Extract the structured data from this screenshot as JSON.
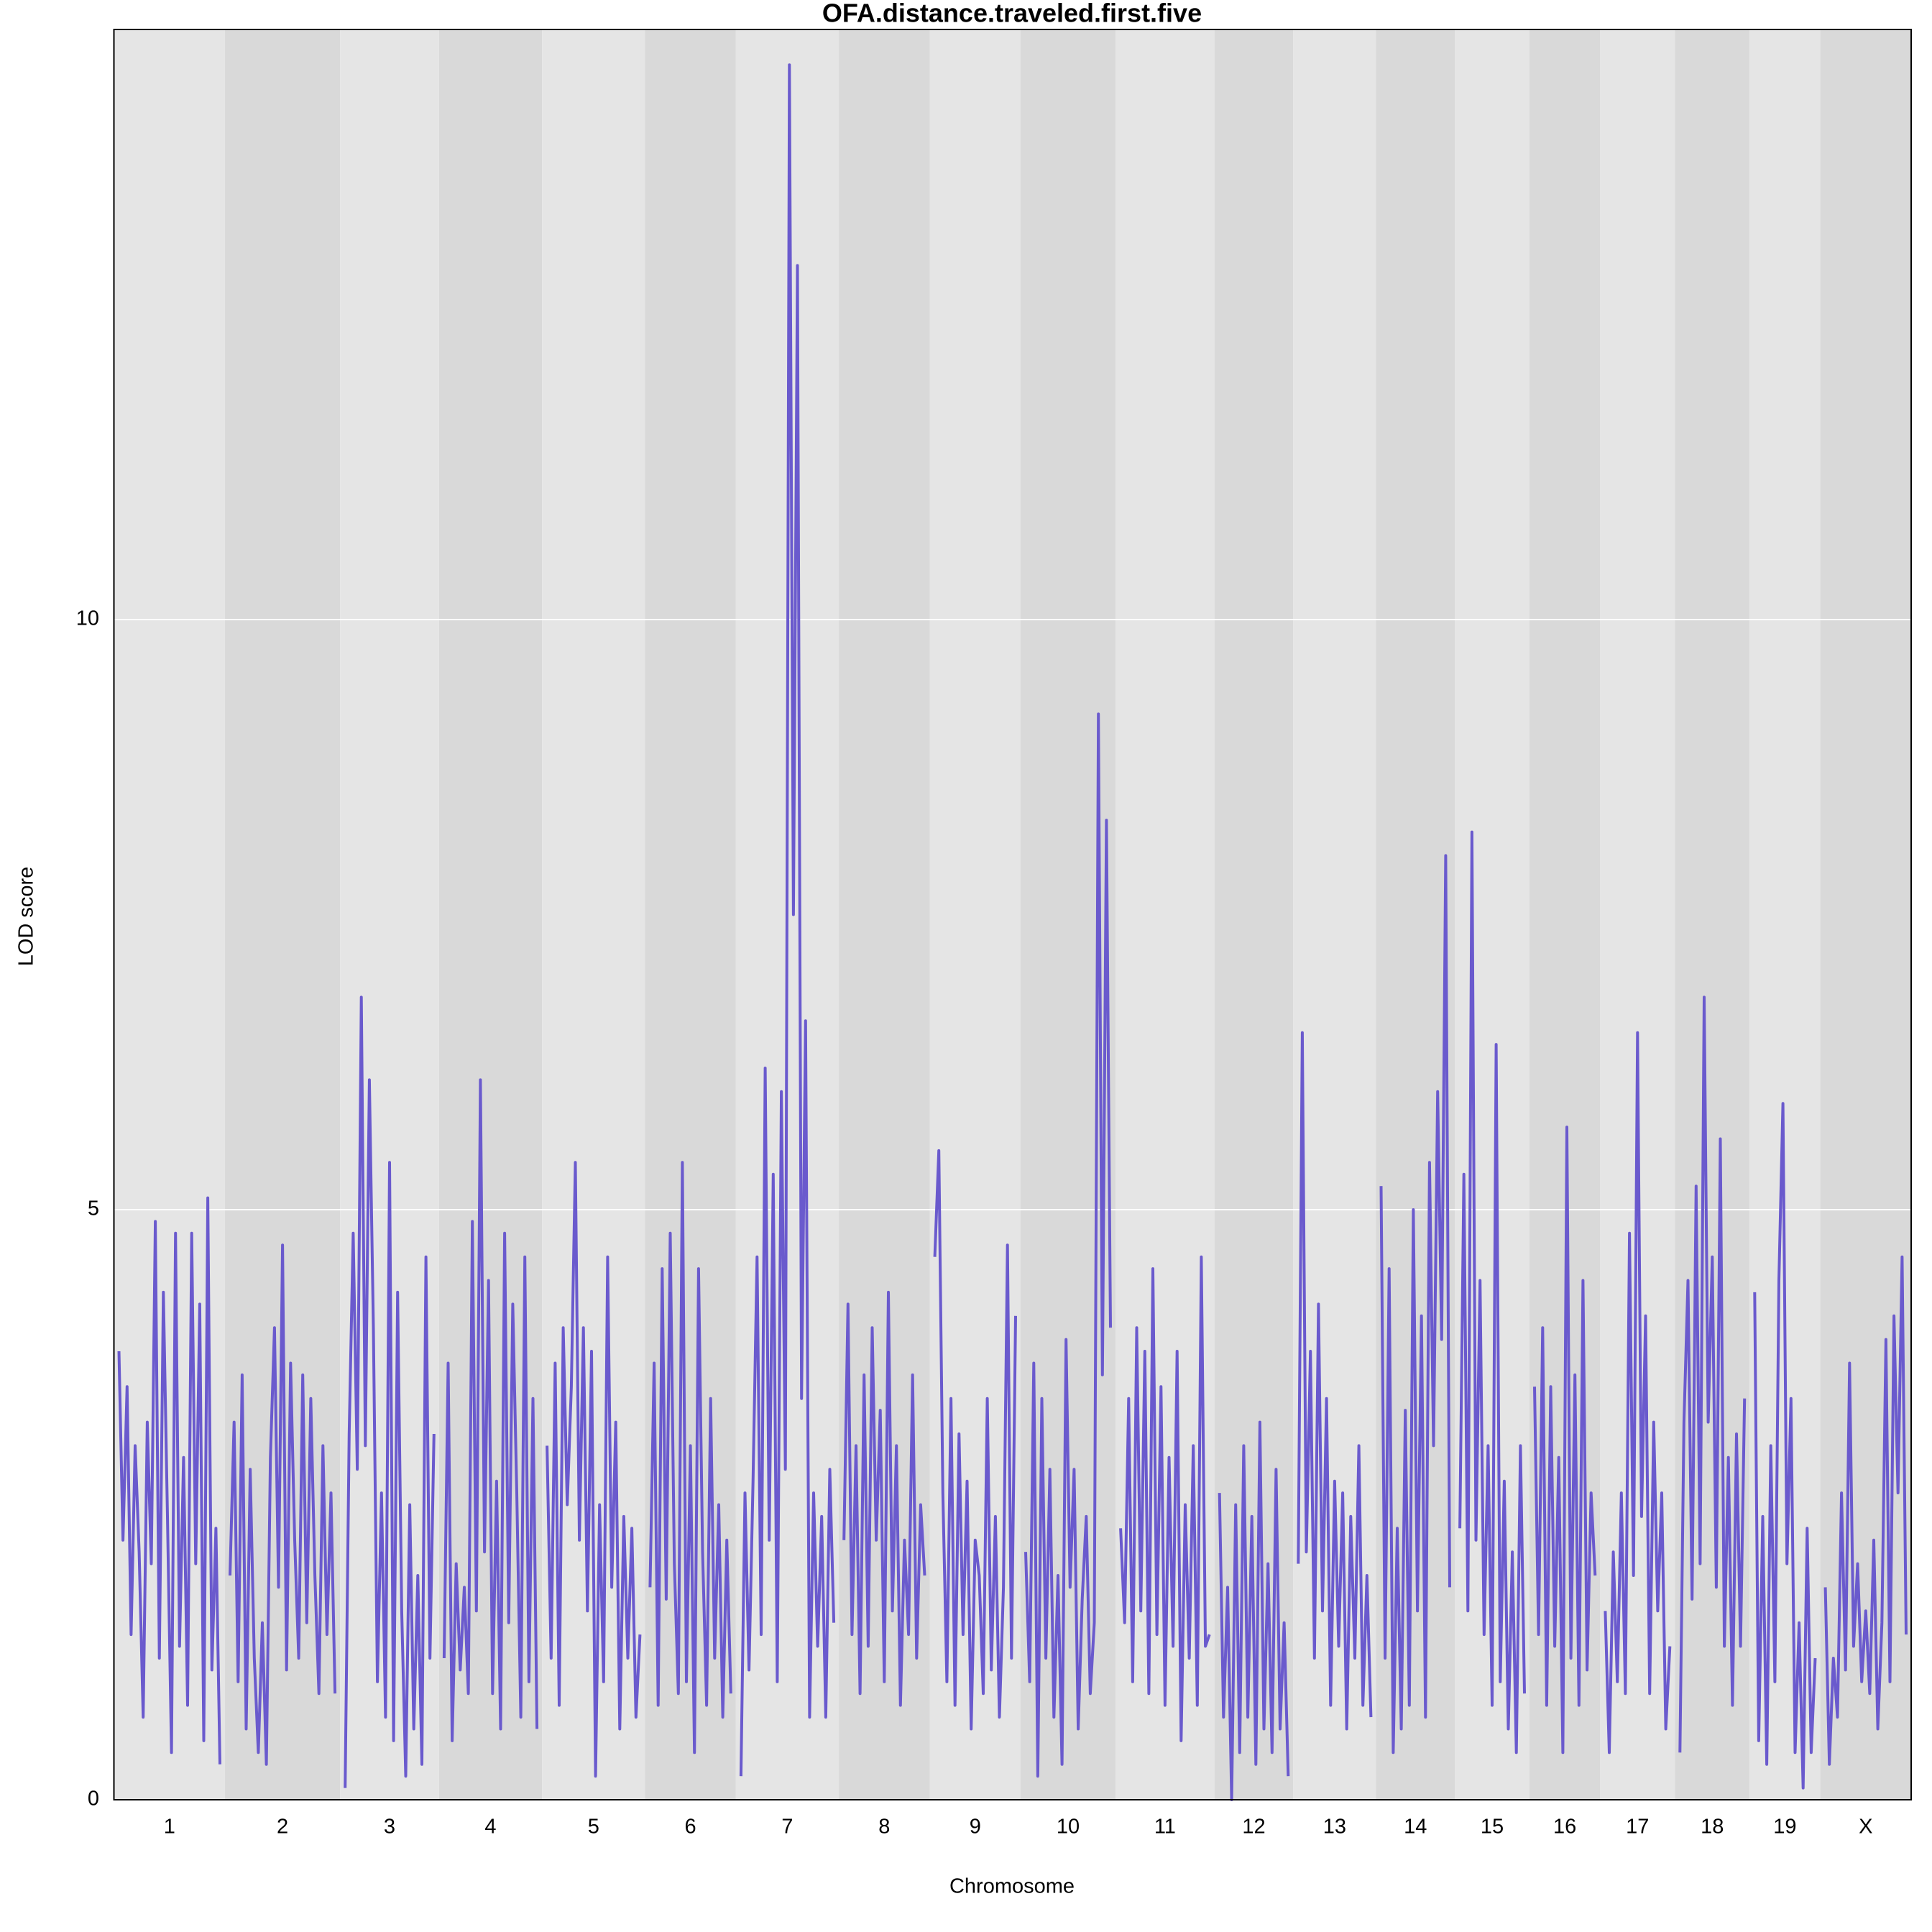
{
  "chart_data": {
    "type": "line",
    "title": "OFA.distance.traveled.first.five",
    "xlabel": "Chromosome",
    "ylabel": "LOD score",
    "color": "#6a5acd",
    "ylim": [
      0,
      15
    ],
    "yticks": [
      0,
      5,
      10
    ],
    "grid": true,
    "categories": [
      "1",
      "2",
      "3",
      "4",
      "5",
      "6",
      "7",
      "8",
      "9",
      "10",
      "11",
      "12",
      "13",
      "14",
      "15",
      "16",
      "17",
      "18",
      "19",
      "X"
    ],
    "values": [
      [
        3.8,
        2.2,
        3.5,
        1.4,
        3.0,
        2.1,
        0.7,
        3.2,
        2.0,
        4.9,
        1.2,
        4.3,
        2.4,
        0.4,
        4.8,
        1.3,
        2.9,
        0.8,
        4.8,
        2.0,
        4.2,
        0.5,
        5.1,
        1.1,
        2.3,
        0.3
      ],
      [
        1.9,
        3.2,
        1.0,
        3.6,
        0.6,
        2.8,
        1.2,
        0.4,
        1.5,
        0.3,
        2.9,
        4.0,
        1.8,
        4.7,
        1.1,
        3.7,
        2.2,
        1.2,
        3.6,
        1.5,
        3.4,
        1.9,
        0.9,
        3.0,
        1.4,
        2.6,
        0.9
      ],
      [
        0.1,
        3.1,
        4.8,
        2.8,
        6.8,
        3.0,
        6.1,
        4.0,
        1.0,
        2.6,
        0.7,
        5.4,
        0.5,
        4.3,
        1.6,
        0.2,
        2.5,
        0.6,
        1.9,
        0.3,
        4.6,
        1.2,
        3.1
      ],
      [
        1.2,
        3.7,
        0.5,
        2.0,
        1.1,
        1.8,
        0.9,
        4.9,
        1.6,
        6.1,
        2.1,
        4.4,
        0.9,
        2.7,
        0.6,
        4.8,
        1.5,
        4.2,
        2.6,
        0.7,
        4.6,
        1.0,
        3.4,
        0.6
      ],
      [
        3.0,
        1.2,
        3.7,
        0.8,
        4.0,
        2.5,
        3.5,
        5.4,
        2.2,
        4.0,
        1.6,
        3.8,
        0.2,
        2.5,
        1.0,
        4.6,
        1.8,
        3.2,
        0.6,
        2.4,
        1.2,
        2.3,
        0.7,
        1.4
      ],
      [
        1.8,
        3.7,
        0.8,
        4.5,
        1.7,
        4.8,
        2.0,
        0.9,
        5.4,
        1.0,
        3.0,
        0.4,
        4.5,
        2.1,
        0.8,
        3.4,
        1.2,
        2.5,
        0.7,
        2.2,
        0.9
      ],
      [
        0.2,
        2.6,
        1.1,
        2.7,
        4.6,
        1.4,
        6.2,
        2.2,
        5.3,
        1.0,
        6.0,
        2.8,
        14.7,
        7.5,
        13.0,
        3.4,
        6.6,
        0.7,
        2.6,
        1.3,
        2.4,
        0.7,
        2.8,
        1.5
      ],
      [
        2.2,
        4.2,
        1.4,
        3.0,
        0.9,
        3.6,
        1.3,
        4.0,
        2.2,
        3.3,
        1.0,
        4.3,
        1.6,
        3.0,
        0.8,
        2.2,
        1.4,
        3.6,
        1.2,
        2.5,
        1.9
      ],
      [
        4.6,
        5.5,
        2.6,
        1.0,
        3.4,
        0.8,
        3.1,
        1.4,
        2.7,
        0.6,
        2.2,
        1.9,
        0.9,
        3.4,
        1.1,
        2.4,
        0.7,
        1.8,
        4.7,
        1.2,
        4.1
      ],
      [
        2.1,
        1.0,
        3.7,
        0.2,
        3.4,
        1.2,
        2.8,
        0.7,
        1.9,
        0.3,
        3.9,
        1.8,
        2.8,
        0.6,
        1.7,
        2.4,
        0.9,
        1.5,
        9.2,
        3.6,
        8.3,
        4.0
      ],
      [
        2.3,
        1.5,
        3.4,
        1.0,
        4.0,
        1.6,
        3.8,
        0.9,
        4.5,
        1.4,
        3.5,
        0.8,
        2.9,
        1.3,
        3.8,
        0.5,
        2.5,
        1.2,
        3.0,
        0.8,
        4.6,
        1.3,
        1.4
      ],
      [
        2.6,
        0.7,
        1.8,
        0.0,
        2.5,
        0.4,
        3.0,
        0.7,
        2.4,
        0.3,
        3.2,
        0.6,
        2.0,
        0.4,
        2.8,
        0.6,
        1.5,
        0.2
      ],
      [
        2.0,
        6.5,
        2.1,
        3.8,
        1.2,
        4.2,
        1.6,
        3.4,
        0.8,
        2.7,
        1.3,
        2.6,
        0.6,
        2.4,
        1.2,
        3.0,
        0.8,
        1.9,
        0.7
      ],
      [
        5.2,
        1.2,
        4.5,
        0.4,
        2.3,
        0.6,
        3.3,
        0.8,
        5.0,
        1.6,
        4.1,
        0.7,
        5.4,
        3.0,
        6.0,
        3.9,
        8.0,
        1.8
      ],
      [
        2.3,
        5.3,
        1.6,
        8.2,
        2.2,
        4.4,
        1.4,
        3.0,
        0.8,
        6.4,
        1.0,
        2.7,
        0.6,
        2.1,
        0.4,
        3.0,
        0.9
      ],
      [
        3.5,
        1.4,
        4.0,
        0.8,
        3.5,
        1.3,
        2.9,
        0.4,
        5.7,
        1.2,
        3.6,
        0.8,
        4.4,
        1.1,
        2.6,
        1.9
      ],
      [
        1.6,
        0.4,
        2.1,
        1.0,
        2.6,
        0.9,
        4.8,
        1.9,
        6.5,
        2.4,
        4.1,
        0.9,
        3.2,
        1.6,
        2.6,
        0.6,
        1.3
      ],
      [
        0.4,
        3.2,
        4.4,
        1.7,
        5.2,
        2.0,
        6.8,
        3.2,
        4.6,
        1.8,
        5.6,
        1.3,
        2.9,
        0.8,
        3.1,
        1.3,
        3.4
      ],
      [
        4.3,
        0.5,
        2.4,
        0.3,
        3.0,
        1.0,
        4.4,
        5.9,
        2.0,
        3.4,
        0.4,
        1.5,
        0.1,
        2.3,
        0.4,
        1.2
      ],
      [
        1.8,
        0.3,
        1.2,
        0.7,
        2.6,
        1.1,
        3.7,
        1.3,
        2.0,
        1.0,
        1.6,
        0.9,
        2.2,
        0.6,
        1.5,
        3.9,
        1.0,
        4.1,
        2.6,
        4.6,
        1.4
      ]
    ]
  }
}
